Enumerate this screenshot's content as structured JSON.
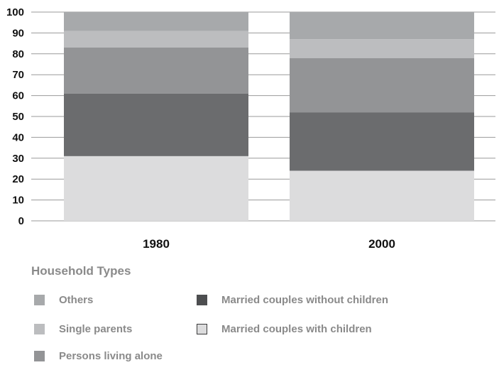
{
  "chart_data": {
    "type": "bar",
    "stacked": true,
    "categories": [
      "1980",
      "2000"
    ],
    "ylim": [
      0,
      100
    ],
    "yticks": [
      0,
      10,
      20,
      30,
      40,
      50,
      60,
      70,
      80,
      90,
      100
    ],
    "grid": true,
    "series": [
      {
        "name": "Married couples with children",
        "color": "#dcdcdd",
        "values": [
          31,
          24
        ]
      },
      {
        "name": "Married couples without children",
        "color": "#6b6c6e",
        "values": [
          30,
          28
        ]
      },
      {
        "name": "Persons living alone",
        "color": "#939496",
        "values": [
          22,
          26
        ]
      },
      {
        "name": "Single parents",
        "color": "#bcbdbf",
        "values": [
          8,
          9
        ]
      },
      {
        "name": "Others",
        "color": "#a7a9ab",
        "values": [
          9,
          13
        ]
      }
    ],
    "legend": {
      "title": "Household Types",
      "placement": "bottom",
      "items": [
        {
          "label": "Others",
          "color": "#a7a9ab"
        },
        {
          "label": "Single parents",
          "color": "#bcbdbf"
        },
        {
          "label": "Persons living alone",
          "color": "#939496"
        },
        {
          "label": "Married couples without children",
          "color": "#4d4e50"
        },
        {
          "label": "Married couples with children",
          "color": "#dcdcdd"
        }
      ]
    }
  }
}
